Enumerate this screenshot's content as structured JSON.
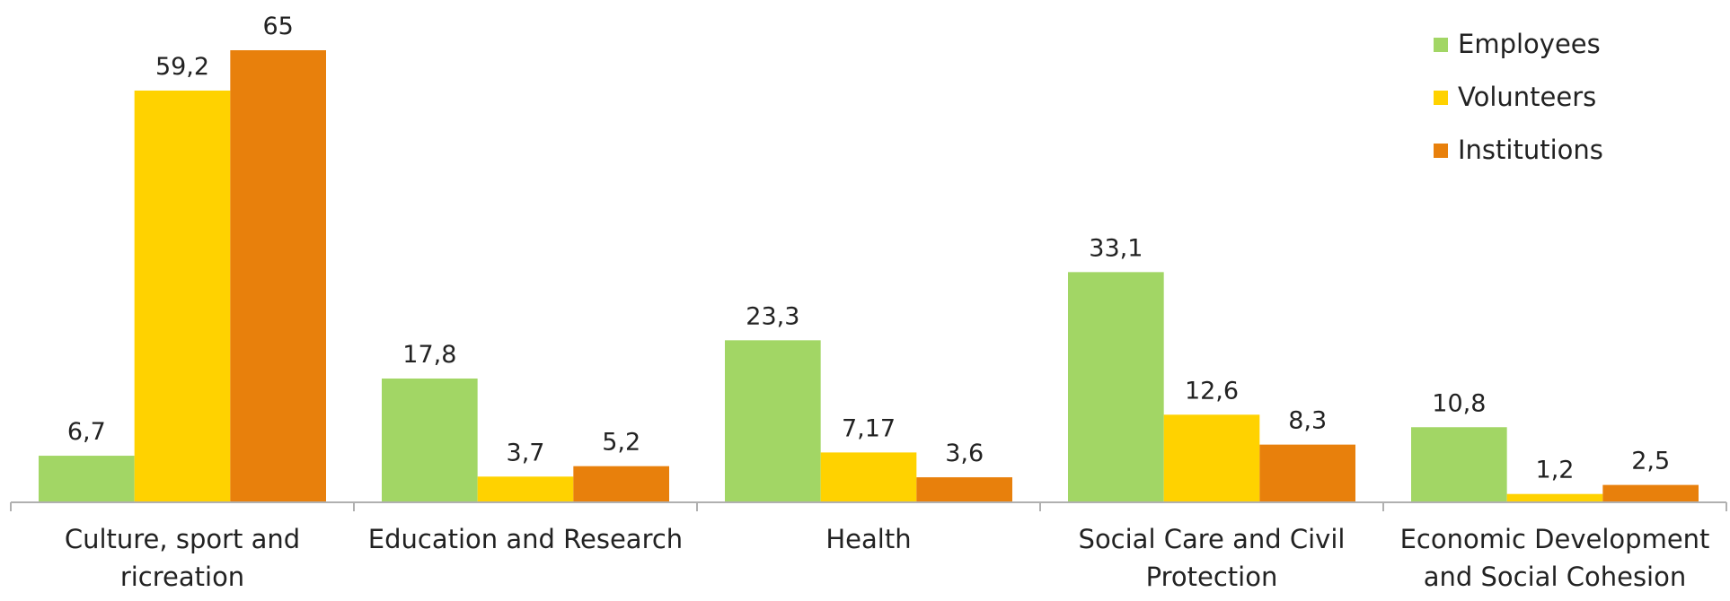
{
  "chart_data": {
    "type": "bar",
    "categories": [
      "Culture, sport and ricreation",
      "Education and Research",
      "Health",
      "Social Care and Civil Protection",
      "Economic Development and Social Cohesion"
    ],
    "series": [
      {
        "name": "Employees",
        "color": "#a2d665",
        "values": [
          6.7,
          17.8,
          23.3,
          33.1,
          10.8
        ],
        "value_labels": [
          "6,7",
          "17,8",
          "23,3",
          "33,1",
          "10,8"
        ]
      },
      {
        "name": "Volunteers",
        "color": "#ffd200",
        "values": [
          59.2,
          3.7,
          7.17,
          12.6,
          1.2
        ],
        "value_labels": [
          "59,2",
          "3,7",
          "7,17",
          "12,6",
          "1,2"
        ]
      },
      {
        "name": "Institutions",
        "color": "#e8800c",
        "values": [
          65,
          5.2,
          3.6,
          8.3,
          2.5
        ],
        "value_labels": [
          "65",
          "5,2",
          "3,6",
          "8,3",
          "2,5"
        ]
      }
    ],
    "ylim": [
      0,
      65
    ],
    "legend": "top-right"
  }
}
